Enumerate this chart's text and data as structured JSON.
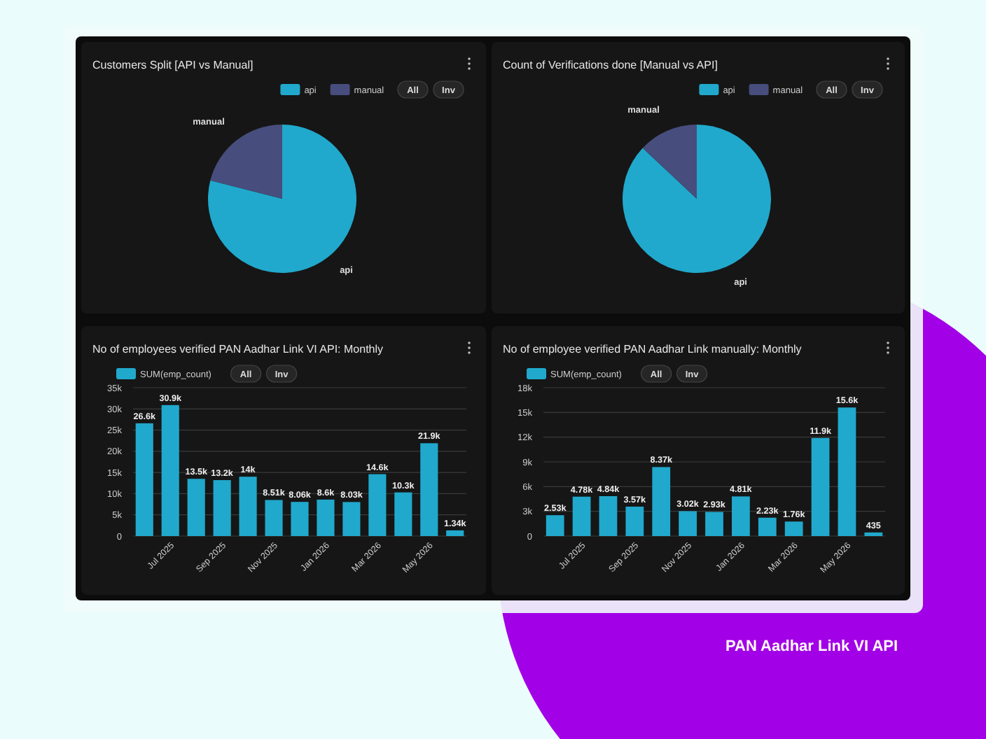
{
  "chart_data": [
    {
      "type": "pie",
      "title": "Customers Split [API vs Manual]",
      "categories": [
        "api",
        "manual"
      ],
      "values": [
        79,
        21
      ],
      "colors": [
        "#20a9cc",
        "#474d7c"
      ],
      "legend": "top right",
      "annotations": [
        "All",
        "Inv"
      ]
    },
    {
      "type": "pie",
      "title": "Count of Verifications done [Manual vs API]",
      "categories": [
        "api",
        "manual"
      ],
      "values": [
        87,
        13
      ],
      "colors": [
        "#20a9cc",
        "#474d7c"
      ],
      "legend": "top right",
      "annotations": [
        "All",
        "Inv"
      ]
    },
    {
      "type": "bar",
      "title": "No of employees verified PAN Aadhar Link VI API: Monthly",
      "categories": [
        null,
        "Jul 2025",
        null,
        "Sep 2025",
        null,
        "Nov 2025",
        null,
        "Jan 2026",
        null,
        "Mar 2026",
        null,
        "May 2026",
        null
      ],
      "series": [
        {
          "name": "SUM(emp_count)",
          "color": "#20a9cc",
          "values": [
            26600,
            30900,
            13500,
            13200,
            14000,
            8510,
            8060,
            8600,
            8030,
            14600,
            10300,
            21900,
            1340
          ],
          "value_labels": [
            "26.6k",
            "30.9k",
            "13.5k",
            "13.2k",
            "14k",
            "8.51k",
            "8.06k",
            "8.6k",
            "8.03k",
            "14.6k",
            "10.3k",
            "21.9k",
            "1.34k"
          ]
        }
      ],
      "ylim": [
        0,
        35000
      ],
      "yticks": [
        0,
        {
          "value": 5000,
          "label": "5k"
        },
        {
          "value": 10000,
          "label": "10k"
        },
        {
          "value": 15000,
          "label": "15k"
        },
        {
          "value": 20000,
          "label": "20k"
        },
        {
          "value": 25000,
          "label": "25k"
        },
        {
          "value": 30000,
          "label": "30k"
        },
        {
          "value": 35000,
          "label": "35k"
        }
      ],
      "grid": "y",
      "legend": "top left",
      "annotations": [
        "All",
        "Inv"
      ]
    },
    {
      "type": "bar",
      "title": "No of employee verified PAN Aadhar Link manually: Monthly",
      "categories": [
        null,
        "Jul 2025",
        null,
        "Sep 2025",
        null,
        "Nov 2025",
        null,
        "Jan 2026",
        null,
        "Mar 2026",
        null,
        "May 2026",
        null
      ],
      "series": [
        {
          "name": "SUM(emp_count)",
          "color": "#20a9cc",
          "values": [
            2530,
            4780,
            4840,
            3570,
            8370,
            3020,
            2930,
            4810,
            2230,
            1760,
            11900,
            15600,
            435
          ],
          "value_labels": [
            "2.53k",
            "4.78k",
            "4.84k",
            "3.57k",
            "8.37k",
            "3.02k",
            "2.93k",
            "4.81k",
            "2.23k",
            "1.76k",
            "11.9k",
            "15.6k",
            "435"
          ]
        }
      ],
      "ylim": [
        0,
        18000
      ],
      "yticks": [
        0,
        {
          "value": 3000,
          "label": "3k"
        },
        {
          "value": 6000,
          "label": "6k"
        },
        {
          "value": 9000,
          "label": "9k"
        },
        {
          "value": 12000,
          "label": "12k"
        },
        {
          "value": 15000,
          "label": "15k"
        },
        {
          "value": 18000,
          "label": "18k"
        }
      ],
      "grid": "y",
      "legend": "top left",
      "annotations": [
        "All",
        "Inv"
      ]
    },
    {
      "type": "other",
      "title": "PAN Aadhar Link VI API"
    }
  ]
}
